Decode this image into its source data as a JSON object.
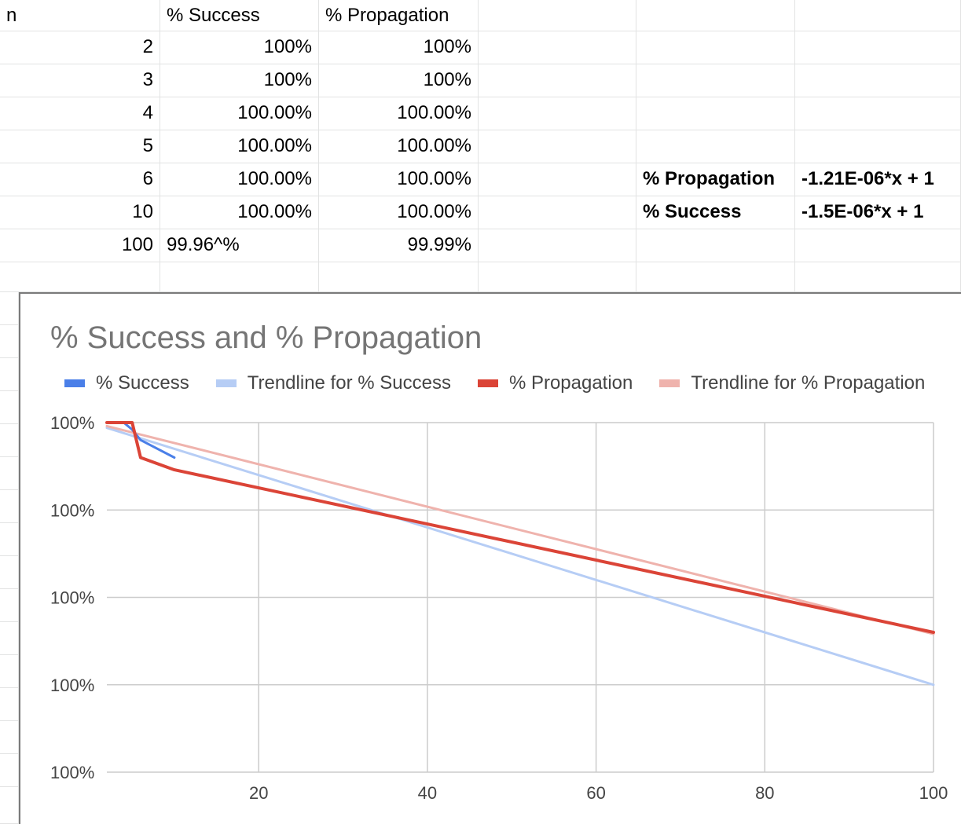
{
  "sheet": {
    "headers": [
      "n",
      "% Success",
      "% Propagation"
    ],
    "rows": [
      [
        "2",
        "100%",
        "100%"
      ],
      [
        "3",
        "100%",
        "100%"
      ],
      [
        "4",
        "100.00%",
        "100.00%"
      ],
      [
        "5",
        "100.00%",
        "100.00%"
      ],
      [
        "6",
        "100.00%",
        "100.00%"
      ],
      [
        "10",
        "100.00%",
        "100.00%"
      ],
      [
        "100",
        "99.96^%",
        "99.99%"
      ]
    ],
    "equations": [
      {
        "label": "% Propagation",
        "value": "-1.21E-06*x + 1"
      },
      {
        "label": "% Success",
        "value": "-1.5E-06*x + 1"
      }
    ]
  },
  "colors": {
    "success": "#4a7fe8",
    "success_trend": "#b6cdf5",
    "propagation": "#db4437",
    "propagation_trend": "#efb3ad",
    "grid": "#cccccc",
    "cell_border": "#e2e3e3"
  },
  "chart_data": {
    "type": "line",
    "title": "% Success and % Propagation",
    "xlabel": "",
    "ylabel": "",
    "xlim": [
      2,
      100
    ],
    "ylim": [
      0.9998,
      1.0
    ],
    "x_ticks": [
      "20",
      "40",
      "60",
      "80",
      "100"
    ],
    "x_tick_values": [
      20,
      40,
      60,
      80,
      100
    ],
    "y_ticks": [
      "100%",
      "100%",
      "100%",
      "100%",
      "100%"
    ],
    "y_tick_values": [
      1.0,
      0.99995,
      0.9999,
      0.99985,
      0.9998
    ],
    "grid": true,
    "legend_position": "top",
    "legend": [
      "% Success",
      "Trendline for % Success",
      "% Propagation",
      "Trendline for % Propagation"
    ],
    "series": [
      {
        "name": "% Success",
        "x": [
          2,
          3,
          4,
          5,
          6,
          10
        ],
        "y": [
          1.0,
          1.0,
          1.0,
          0.999996,
          0.99999,
          0.99998
        ]
      },
      {
        "name": "Trendline for % Success",
        "x": [
          2,
          100
        ],
        "y": [
          0.999997,
          0.99985
        ]
      },
      {
        "name": "% Propagation",
        "x": [
          2,
          3,
          4,
          5,
          6,
          10,
          100
        ],
        "y": [
          1.0,
          1.0,
          1.0,
          1.0,
          0.99998,
          0.999973,
          0.99988
        ]
      },
      {
        "name": "Trendline for % Propagation",
        "x": [
          2,
          100
        ],
        "y": [
          0.999998,
          0.999879
        ]
      }
    ]
  }
}
